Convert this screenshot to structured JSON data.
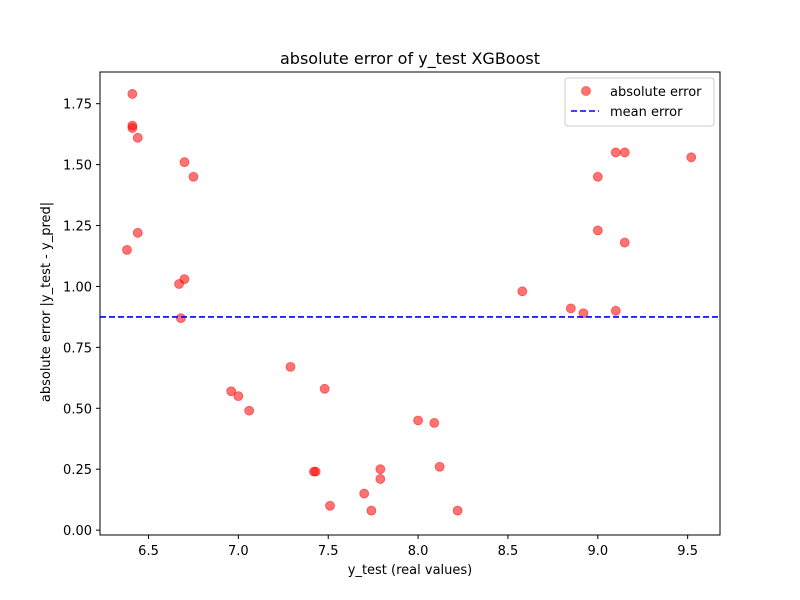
{
  "chart_data": {
    "type": "scatter",
    "title": "absolute error of y_test XGBoost",
    "xlabel": "y_test (real values)",
    "ylabel": "absolute error |y_test - y_pred|",
    "xlim": [
      6.23,
      9.68
    ],
    "ylim": [
      -0.02,
      1.88
    ],
    "xticks": [
      6.5,
      7.0,
      7.5,
      8.0,
      8.5,
      9.0,
      9.5
    ],
    "xtick_labels": [
      "6.5",
      "7.0",
      "7.5",
      "8.0",
      "8.5",
      "9.0",
      "9.5"
    ],
    "yticks": [
      0.0,
      0.25,
      0.5,
      0.75,
      1.0,
      1.25,
      1.5,
      1.75
    ],
    "ytick_labels": [
      "0.00",
      "0.25",
      "0.50",
      "0.75",
      "1.00",
      "1.25",
      "1.50",
      "1.75"
    ],
    "grid": false,
    "legend_position": "top-right",
    "series": [
      {
        "name": "absolute error",
        "kind": "scatter",
        "color": "#ff0000",
        "opacity": 0.55,
        "points": [
          [
            6.41,
            1.79
          ],
          [
            6.41,
            1.66
          ],
          [
            6.41,
            1.65
          ],
          [
            6.44,
            1.61
          ],
          [
            6.7,
            1.51
          ],
          [
            6.75,
            1.45
          ],
          [
            6.44,
            1.22
          ],
          [
            6.38,
            1.15
          ],
          [
            6.7,
            1.03
          ],
          [
            6.67,
            1.01
          ],
          [
            6.68,
            0.87
          ],
          [
            6.96,
            0.57
          ],
          [
            7.0,
            0.55
          ],
          [
            7.06,
            0.49
          ],
          [
            7.29,
            0.67
          ],
          [
            7.48,
            0.58
          ],
          [
            7.42,
            0.24
          ],
          [
            7.43,
            0.24
          ],
          [
            7.51,
            0.1
          ],
          [
            7.7,
            0.15
          ],
          [
            7.74,
            0.08
          ],
          [
            7.79,
            0.25
          ],
          [
            7.79,
            0.21
          ],
          [
            8.0,
            0.45
          ],
          [
            8.09,
            0.44
          ],
          [
            8.12,
            0.26
          ],
          [
            8.22,
            0.08
          ],
          [
            8.58,
            0.98
          ],
          [
            8.85,
            0.91
          ],
          [
            8.92,
            0.89
          ],
          [
            9.1,
            0.9
          ],
          [
            9.1,
            1.55
          ],
          [
            9.15,
            1.55
          ],
          [
            9.0,
            1.45
          ],
          [
            9.0,
            1.23
          ],
          [
            9.15,
            1.18
          ],
          [
            9.52,
            1.53
          ]
        ]
      },
      {
        "name": "mean error",
        "kind": "hline",
        "color": "#0000ff",
        "linestyle": "dashed",
        "y": 0.875
      }
    ]
  }
}
